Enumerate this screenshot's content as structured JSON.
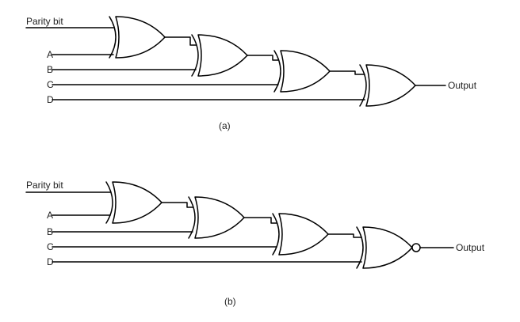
{
  "circuit_a": {
    "inputs": [
      "Parity bit",
      "A",
      "B",
      "C",
      "D"
    ],
    "output_label": "Output",
    "caption": "(a)",
    "final_gate": "XOR"
  },
  "circuit_b": {
    "inputs": [
      "Parity bit",
      "A",
      "B",
      "C",
      "D"
    ],
    "output_label": "Output",
    "caption": "(b)",
    "final_gate": "XNOR"
  },
  "colors": {
    "stroke": "#000000",
    "text": "#222222",
    "background": "#ffffff"
  }
}
